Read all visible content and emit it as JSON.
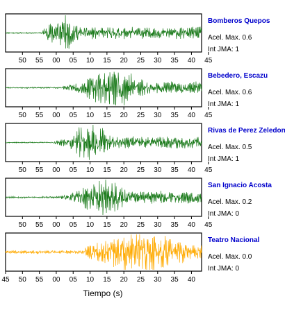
{
  "chart_data": {
    "type": "line",
    "xlabel": "Tiempo (s)",
    "stations": [
      {
        "name": "Bomberos Quepos",
        "acel_label": "Acel. Max. 0.6",
        "int_label": "Int JMA: 1",
        "color": "#1a7a1a",
        "ticks": [
          "50",
          "55",
          "00",
          "05",
          "10",
          "15",
          "20",
          "25",
          "30",
          "35",
          "40",
          "45"
        ],
        "tick_offset_sec": 5,
        "signal": {
          "onset": 11,
          "peak": 17,
          "peak_amp": 0.85,
          "decay": 4.5,
          "noise": 0.03,
          "seed": 11
        }
      },
      {
        "name": "Bebedero, Escazu",
        "acel_label": "Acel. Max. 0.6",
        "int_label": "Int JMA: 1",
        "color": "#1a7a1a",
        "ticks": [
          "50",
          "55",
          "00",
          "05",
          "10",
          "15",
          "20",
          "25",
          "30",
          "35",
          "40",
          "45"
        ],
        "tick_offset_sec": 5,
        "signal": {
          "onset": 17,
          "peak": 32,
          "peak_amp": 0.9,
          "decay": 9,
          "noise": 0.03,
          "seed": 23
        }
      },
      {
        "name": "Rivas de Perez Zeledon",
        "acel_label": "Acel. Max. 0.5",
        "int_label": "Int JMA: 1",
        "color": "#1a7a1a",
        "ticks": [
          "50",
          "55",
          "00",
          "05",
          "10",
          "15",
          "20",
          "25",
          "30",
          "35",
          "40",
          "45"
        ],
        "tick_offset_sec": 5,
        "signal": {
          "onset": 14,
          "peak": 25,
          "peak_amp": 0.9,
          "decay": 6,
          "noise": 0.025,
          "seed": 37
        }
      },
      {
        "name": "San Ignacio Acosta",
        "acel_label": "Acel. Max. 0.2",
        "int_label": "Int JMA: 0",
        "color": "#1a7a1a",
        "ticks": [
          "50",
          "55",
          "00",
          "05",
          "10",
          "15",
          "20",
          "25",
          "30",
          "35",
          "40",
          "45"
        ],
        "tick_offset_sec": 5,
        "signal": {
          "onset": 15,
          "peak": 29,
          "peak_amp": 0.9,
          "decay": 7,
          "noise": 0.04,
          "seed": 53
        }
      },
      {
        "name": "Teatro Nacional",
        "acel_label": "Acel. Max. 0.0",
        "int_label": "Int JMA: 0",
        "color": "#ffaa00",
        "ticks": [
          "45",
          "50",
          "55",
          "00",
          "05",
          "10",
          "15",
          "20",
          "25",
          "30",
          "35",
          "40"
        ],
        "tick_offset_sec": 0,
        "signal": {
          "onset": 23.5,
          "peak": 40,
          "peak_amp": 0.9,
          "decay": 14,
          "noise": 0.08,
          "seed": 71
        }
      }
    ]
  }
}
